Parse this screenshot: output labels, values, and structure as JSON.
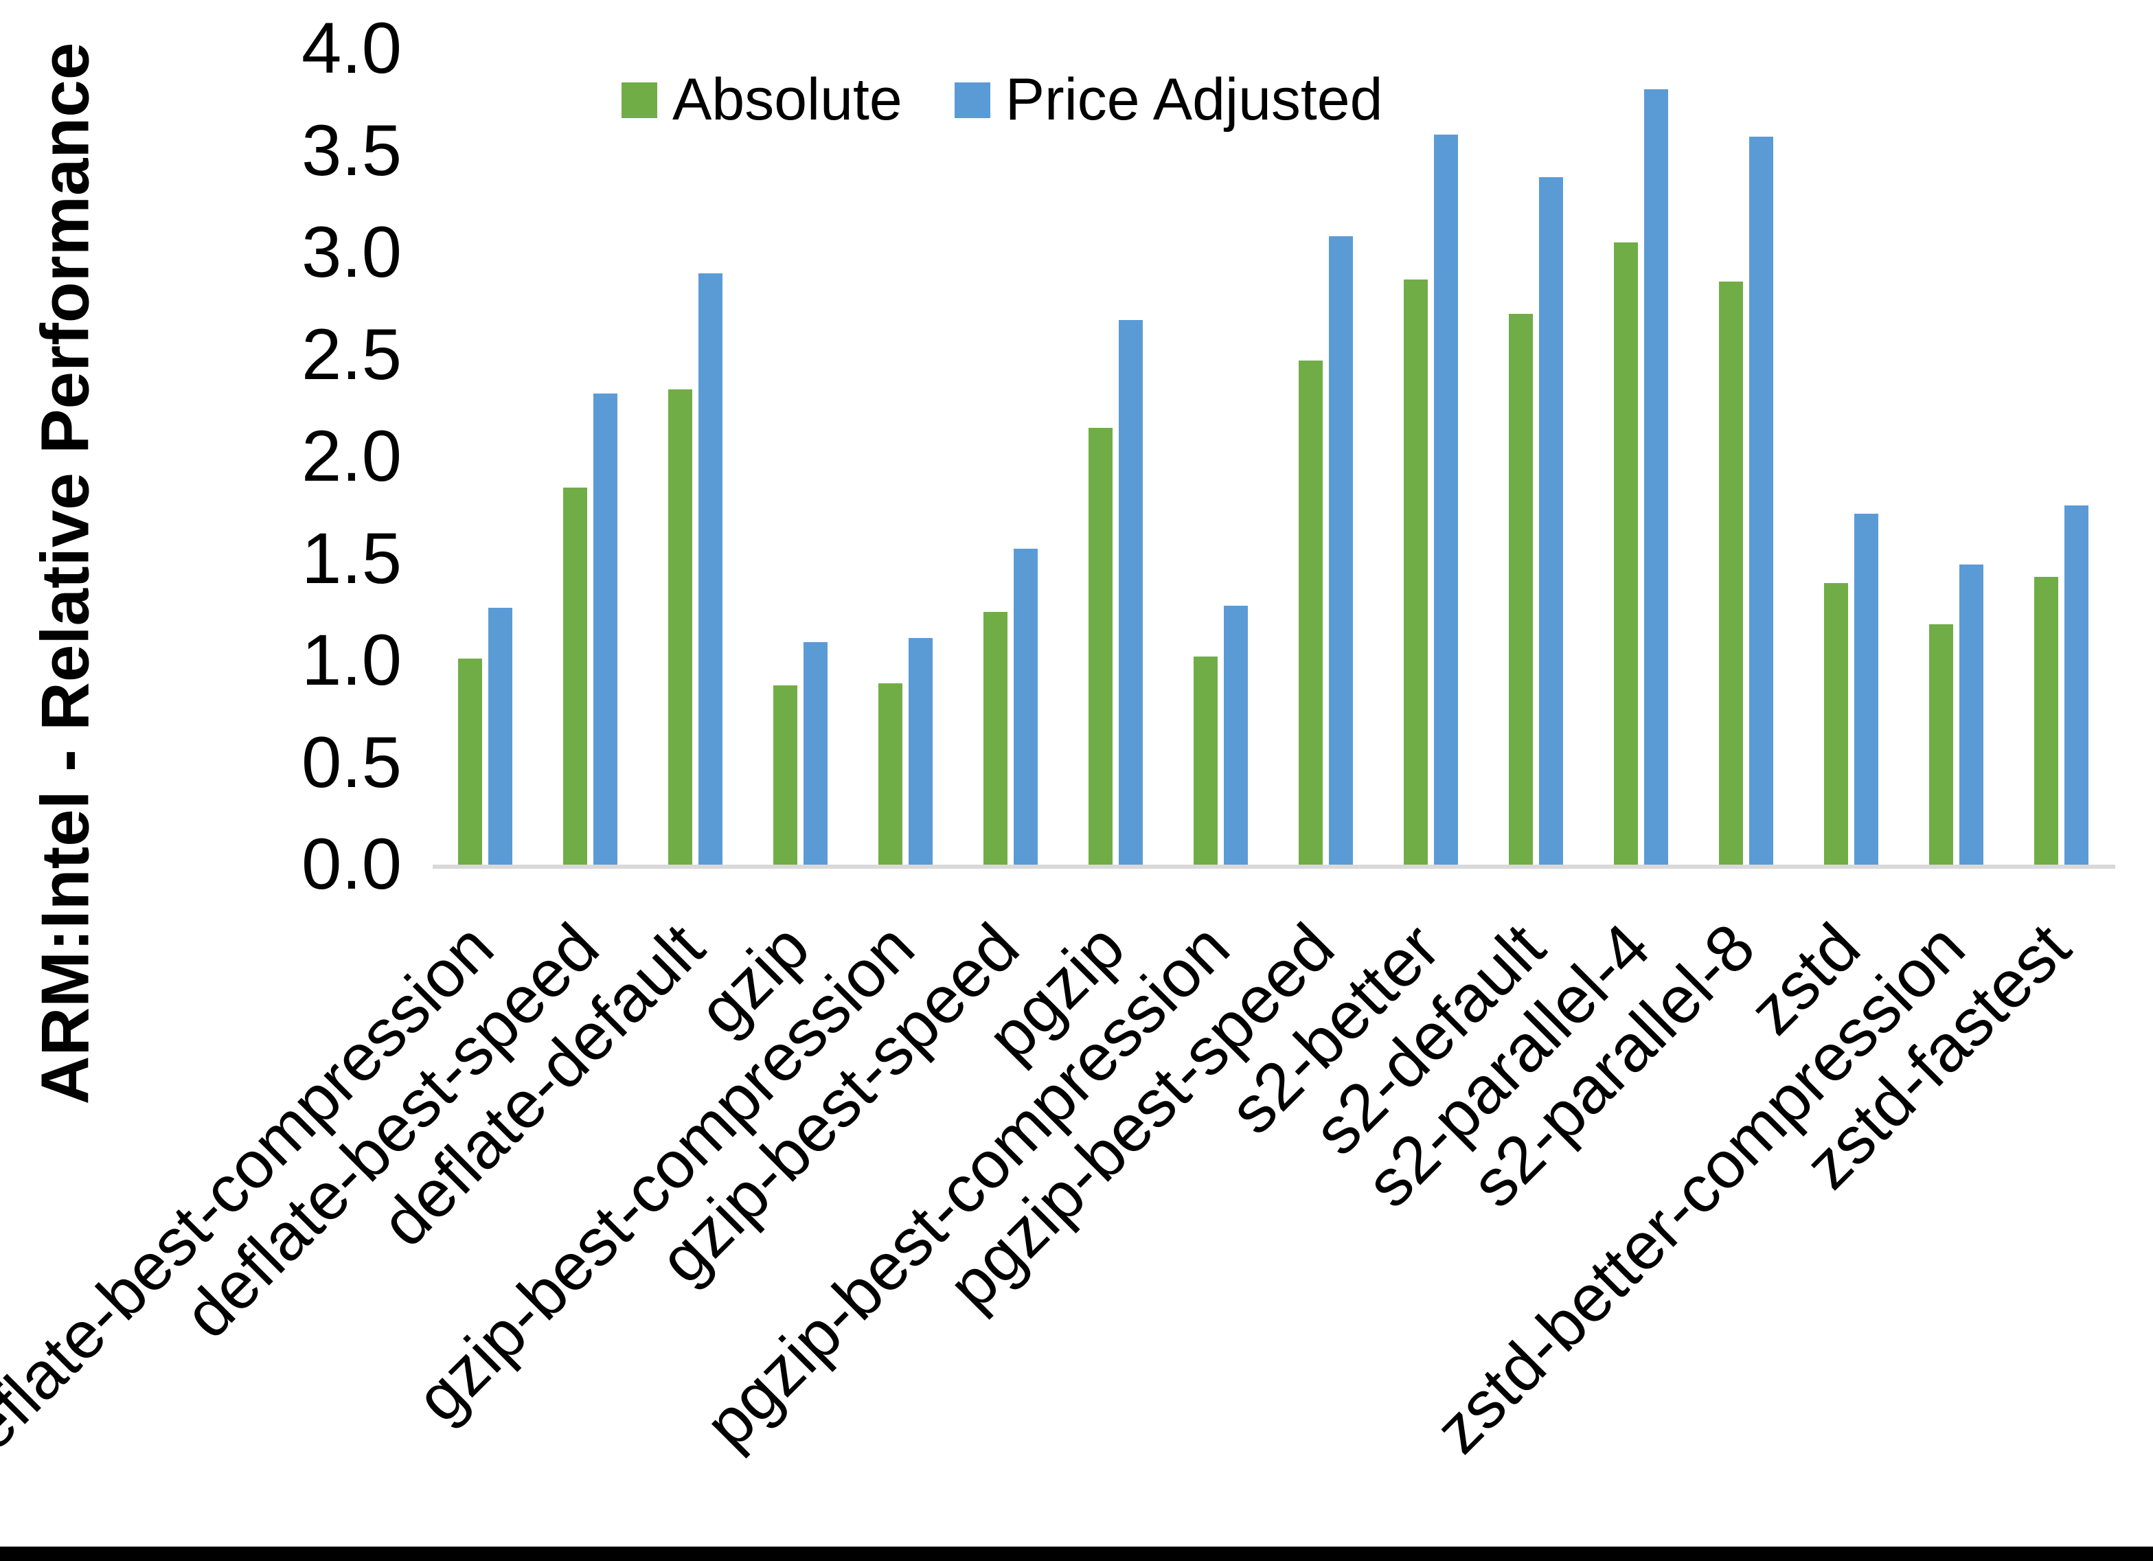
{
  "chart_data": {
    "type": "bar",
    "title": "",
    "xlabel": "",
    "ylabel": "ARM:Intel - Relative Performance",
    "ylim": [
      0.0,
      4.0
    ],
    "ytick_step": 0.5,
    "yticks": [
      "4.0",
      "3.5",
      "3.0",
      "2.5",
      "2.0",
      "1.5",
      "1.0",
      "0.5",
      "0.0"
    ],
    "grid": false,
    "legend_position": "top-center",
    "categories": [
      "deflate-best-compression",
      "deflate-best-speed",
      "deflate-default",
      "gzip",
      "gzip-best-compression",
      "gzip-best-speed",
      "pgzip",
      "pgzip-best-compression",
      "pgzip-best-speed",
      "s2-better",
      "s2-default",
      "s2-parallel-4",
      "s2-parallel-8",
      "zstd",
      "zstd-better-compression",
      "zstd-fastest"
    ],
    "series": [
      {
        "name": "Absolute",
        "color": "#70AD47",
        "values": [
          1.01,
          1.85,
          2.33,
          0.88,
          0.89,
          1.24,
          2.14,
          1.02,
          2.47,
          2.87,
          2.7,
          3.05,
          2.86,
          1.38,
          1.18,
          1.41
        ]
      },
      {
        "name": "Price Adjusted",
        "color": "#5B9BD5",
        "values": [
          1.26,
          2.31,
          2.9,
          1.09,
          1.11,
          1.55,
          2.67,
          1.27,
          3.08,
          3.58,
          3.37,
          3.8,
          3.57,
          1.72,
          1.47,
          1.76
        ]
      }
    ]
  },
  "legend": {
    "items": [
      {
        "label": "Absolute",
        "color": "#70AD47"
      },
      {
        "label": "Price Adjusted",
        "color": "#5B9BD5"
      }
    ]
  },
  "colors": {
    "background": "#FFFFFF",
    "text": "#000000",
    "axis_line": "#D9D9D9",
    "bar_absolute": "#70AD47",
    "bar_price_adjusted": "#5B9BD5",
    "bottom_border": "#000000"
  }
}
